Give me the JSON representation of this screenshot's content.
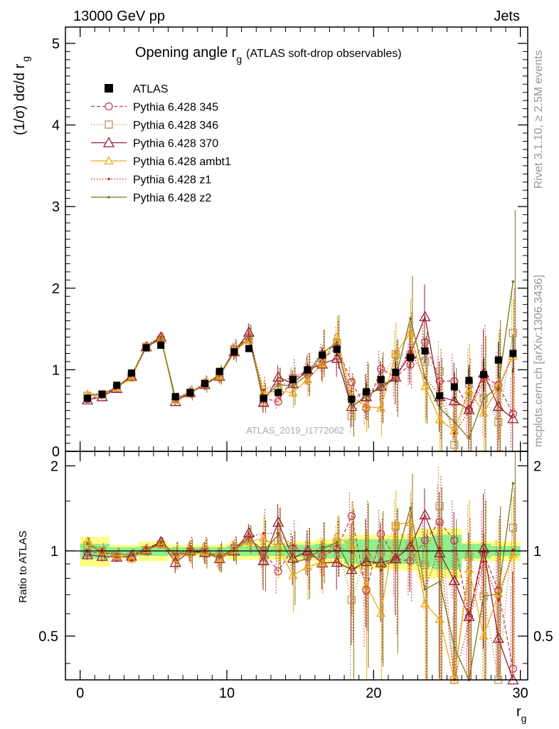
{
  "header": {
    "left": "13000 GeV pp",
    "right": "Jets",
    "side_rivet": "Rivet 3.1.10, ≥ 2.5M events",
    "side_mcplots": "mcplots.cern.ch [arXiv:1306.3436]",
    "watermark": "ATLAS_2019_I1772062"
  },
  "chart_data": [
    {
      "type": "scatter",
      "title_main": "Opening angle r",
      "title_sub": "g",
      "title_paren": "(ATLAS soft-drop observables)",
      "ylabel": "(1/σ) dσ/d r",
      "ylabel_sub": "g",
      "xlim": [
        -1,
        30.5
      ],
      "ylim": [
        0,
        5.2
      ],
      "yticks": [
        0,
        1,
        2,
        3,
        4,
        5
      ],
      "yticklabels": [
        "0",
        "1",
        "2",
        "3",
        "4",
        "5"
      ],
      "x": [
        0.5,
        1.5,
        2.5,
        3.5,
        4.5,
        5.5,
        6.5,
        7.5,
        8.5,
        9.5,
        10.5,
        11.5,
        12.5,
        13.5,
        14.5,
        15.5,
        16.5,
        17.5,
        18.5,
        19.5,
        20.5,
        21.5,
        22.5,
        23.5,
        24.5,
        25.5,
        26.5,
        27.5,
        28.5,
        29.5
      ],
      "legend_position": "top-left",
      "series": [
        {
          "name": "ATLAS",
          "color": "#000000",
          "style": "data",
          "values": [
            0.65,
            0.7,
            0.81,
            0.96,
            1.27,
            1.3,
            0.67,
            0.72,
            0.83,
            0.98,
            1.22,
            1.26,
            0.65,
            0.72,
            0.88,
            1.0,
            1.18,
            1.25,
            0.64,
            0.73,
            0.88,
            0.97,
            1.15,
            1.23,
            0.68,
            0.79,
            0.87,
            0.94,
            1.12,
            1.2
          ]
        },
        {
          "name": "Pythia 6.428 345",
          "color": "#c83c50",
          "style": "circle-dashed",
          "values": [
            0.64,
            0.69,
            0.77,
            0.91,
            1.27,
            1.38,
            0.64,
            0.72,
            0.83,
            0.92,
            1.25,
            1.4,
            0.65,
            0.61,
            0.9,
            0.95,
            1.13,
            1.27,
            0.85,
            0.53,
            1.01,
            0.91,
            1.06,
            1.34,
            0.86,
            0.86,
            0.51,
            0.92,
            0.81,
            0.46
          ]
        },
        {
          "name": "Pythia 6.428 346",
          "color": "#b8955a",
          "style": "square-dotted",
          "values": [
            0.68,
            0.7,
            0.78,
            0.92,
            1.28,
            1.37,
            0.65,
            0.72,
            0.83,
            0.94,
            1.25,
            1.38,
            0.6,
            0.78,
            0.9,
            0.99,
            1.14,
            1.33,
            0.43,
            0.7,
            0.87,
            1.19,
            1.18,
            1.1,
            0.98,
            0.08,
            0.83,
            0.65,
            0.36,
            1.45
          ]
        },
        {
          "name": "Pythia 6.428 370",
          "color": "#961e32",
          "style": "triangle-solid",
          "values": [
            0.63,
            0.67,
            0.77,
            0.92,
            1.28,
            1.4,
            0.61,
            0.72,
            0.82,
            0.92,
            1.22,
            1.46,
            0.6,
            0.91,
            0.83,
            1.0,
            1.07,
            1.14,
            0.55,
            0.67,
            0.8,
            0.91,
            1.19,
            1.65,
            0.67,
            0.62,
            0.51,
            0.96,
            0.55,
            0.4
          ]
        },
        {
          "name": "Pythia 6.428 ambt1",
          "color": "#eeaa14",
          "style": "triangle-solid",
          "values": [
            0.7,
            0.7,
            0.78,
            0.9,
            1.28,
            1.38,
            0.63,
            0.72,
            0.83,
            0.92,
            1.23,
            1.36,
            0.72,
            0.74,
            0.72,
            0.88,
            1.07,
            1.4,
            0.67,
            0.55,
            0.53,
            1.2,
            1.45,
            0.8,
            0.39,
            0.25,
            0.75,
            0.47,
            0.79,
            1.17
          ]
        },
        {
          "name": "Pythia 6.428 z1",
          "color": "#c0281e",
          "style": "dot-dotted",
          "values": [
            0.69,
            0.71,
            0.79,
            0.93,
            1.3,
            1.4,
            0.65,
            0.73,
            0.84,
            0.93,
            1.25,
            1.41,
            0.75,
            0.83,
            0.92,
            0.97,
            1.22,
            1.3,
            0.63,
            0.74,
            0.75,
            0.92,
            1.23,
            0.9,
            0.7,
            0.22,
            0.49,
            0.86,
            0.75,
            1.21
          ]
        },
        {
          "name": "Pythia 6.428 z2",
          "color": "#787814",
          "style": "dot-solid",
          "values": [
            0.69,
            0.69,
            0.79,
            0.93,
            1.27,
            1.39,
            0.65,
            0.71,
            0.82,
            0.94,
            1.23,
            1.39,
            0.65,
            0.82,
            0.8,
            0.94,
            1.2,
            1.34,
            0.54,
            0.68,
            0.78,
            0.9,
            1.63,
            0.9,
            0.53,
            0.36,
            0.16,
            0.65,
            0.79,
            2.08
          ]
        }
      ]
    },
    {
      "type": "scatter",
      "ylabel": "Ratio to ATLAS",
      "xlabel": "r",
      "xlabel_sub": "g",
      "xlim": [
        -1,
        30.5
      ],
      "ylim": [
        0.35,
        2.25
      ],
      "yticks": [
        0.5,
        1,
        2
      ],
      "yticklabels": [
        "0.5",
        "1",
        "2"
      ],
      "xticks": [
        0,
        10,
        20,
        30
      ],
      "xticklabels": [
        "0",
        "10",
        "20",
        "30"
      ],
      "band_inner_halfwidth": [
        0.06,
        0.06,
        0.03,
        0.03,
        0.04,
        0.04,
        0.03,
        0.03,
        0.03,
        0.03,
        0.04,
        0.04,
        0.04,
        0.04,
        0.05,
        0.05,
        0.06,
        0.06,
        0.1,
        0.1,
        0.1,
        0.1,
        0.1,
        0.12,
        0.14,
        0.14,
        0.06,
        0.06,
        0.04,
        0.04
      ],
      "band_outer_halfwidth": [
        0.12,
        0.12,
        0.05,
        0.05,
        0.08,
        0.08,
        0.05,
        0.05,
        0.05,
        0.05,
        0.07,
        0.07,
        0.07,
        0.07,
        0.08,
        0.08,
        0.1,
        0.1,
        0.14,
        0.14,
        0.14,
        0.14,
        0.15,
        0.2,
        0.2,
        0.2,
        0.08,
        0.08,
        0.08,
        0.08
      ]
    }
  ]
}
